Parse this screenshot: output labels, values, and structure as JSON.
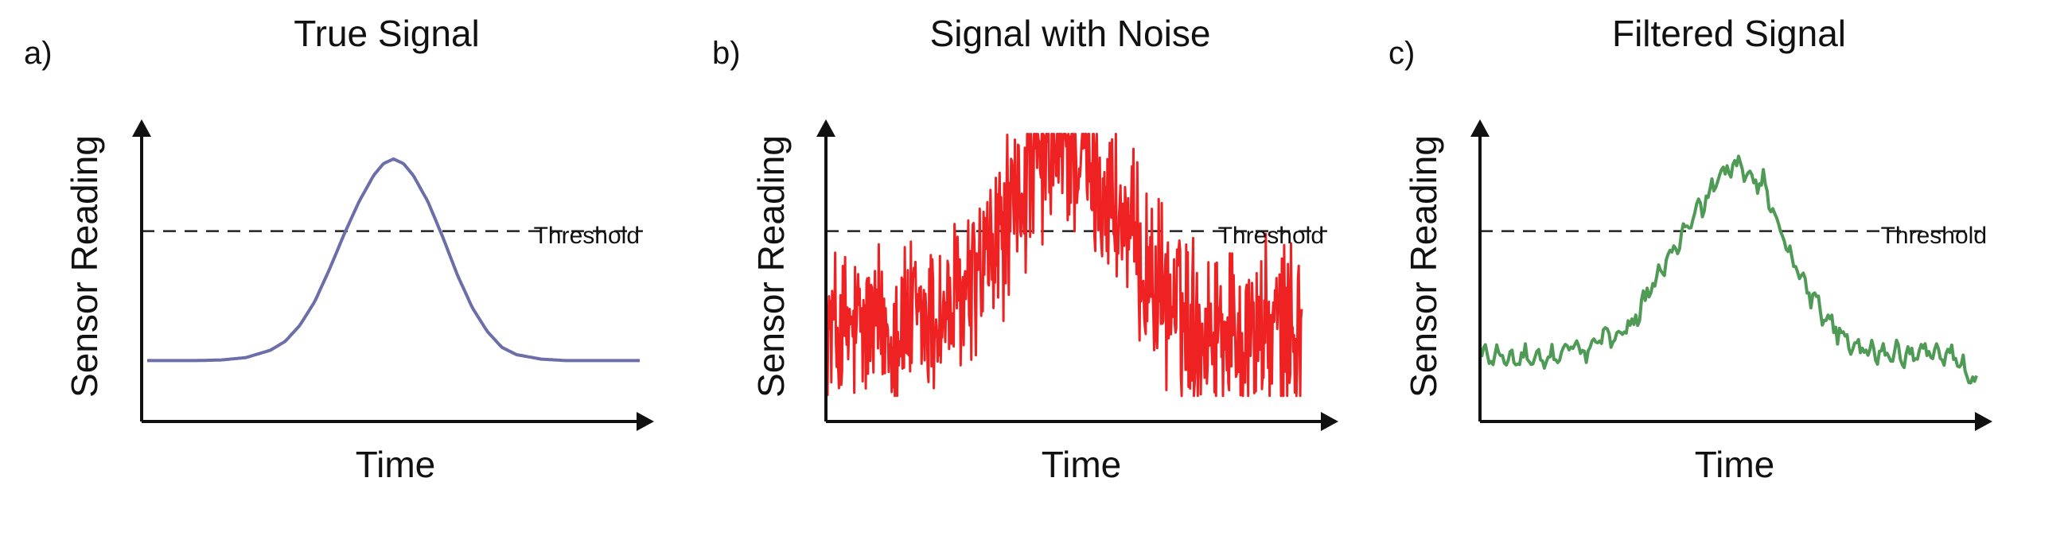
{
  "chart_data": [
    {
      "type": "line",
      "panel_letter": "a)",
      "title": "True Signal",
      "xlabel": "Time",
      "ylabel": "Sensor Reading",
      "threshold_label": "Threshold",
      "threshold": 0.62,
      "ylim": [
        0,
        1
      ],
      "xlim": [
        0,
        1
      ],
      "grid": false,
      "series": [
        {
          "color": "#6b6ea8",
          "x": [
            0.0,
            0.05,
            0.1,
            0.15,
            0.2,
            0.25,
            0.28,
            0.31,
            0.34,
            0.37,
            0.4,
            0.43,
            0.46,
            0.48,
            0.5,
            0.52,
            0.54,
            0.57,
            0.6,
            0.63,
            0.66,
            0.69,
            0.72,
            0.75,
            0.8,
            0.85,
            0.9,
            0.95,
            1.0
          ],
          "y": [
            0.18,
            0.18,
            0.18,
            0.182,
            0.19,
            0.215,
            0.245,
            0.3,
            0.38,
            0.49,
            0.61,
            0.72,
            0.81,
            0.85,
            0.865,
            0.85,
            0.81,
            0.72,
            0.6,
            0.47,
            0.36,
            0.28,
            0.225,
            0.2,
            0.185,
            0.18,
            0.18,
            0.18,
            0.18
          ]
        }
      ]
    },
    {
      "type": "line",
      "panel_letter": "b)",
      "title": "Signal with Noise",
      "xlabel": "Time",
      "ylabel": "Sensor Reading",
      "threshold_label": "Threshold",
      "threshold": 0.62,
      "ylim": [
        0,
        1
      ],
      "xlim": [
        0,
        1
      ],
      "grid": false,
      "series": [
        {
          "color": "#ee2222",
          "x": [
            0.0,
            0.05,
            0.1,
            0.15,
            0.2,
            0.25,
            0.28,
            0.31,
            0.34,
            0.37,
            0.4,
            0.43,
            0.46,
            0.48,
            0.5,
            0.52,
            0.54,
            0.57,
            0.6,
            0.63,
            0.66,
            0.69,
            0.72,
            0.75,
            0.8,
            0.85,
            0.9,
            0.95,
            1.0
          ],
          "y": [
            0.28,
            0.27,
            0.29,
            0.3,
            0.31,
            0.34,
            0.38,
            0.44,
            0.52,
            0.62,
            0.72,
            0.8,
            0.86,
            0.89,
            0.9,
            0.89,
            0.86,
            0.8,
            0.71,
            0.62,
            0.52,
            0.44,
            0.38,
            0.33,
            0.3,
            0.29,
            0.28,
            0.28,
            0.28
          ]
        }
      ]
    },
    {
      "type": "line",
      "panel_letter": "c)",
      "title": "Filtered Signal",
      "xlabel": "Time",
      "ylabel": "Sensor Reading",
      "threshold_label": "Threshold",
      "threshold": 0.62,
      "ylim": [
        0,
        1
      ],
      "xlim": [
        0,
        1
      ],
      "grid": false,
      "series": [
        {
          "color": "#4f9a55",
          "x": [
            0.0,
            0.03,
            0.06,
            0.09,
            0.12,
            0.15,
            0.18,
            0.21,
            0.24,
            0.27,
            0.3,
            0.33,
            0.36,
            0.39,
            0.42,
            0.45,
            0.48,
            0.51,
            0.54,
            0.57,
            0.6,
            0.63,
            0.66,
            0.69,
            0.72,
            0.75,
            0.78,
            0.81,
            0.84,
            0.87,
            0.9,
            0.93,
            0.96,
            1.0
          ],
          "y": [
            0.19,
            0.2,
            0.18,
            0.19,
            0.17,
            0.2,
            0.23,
            0.21,
            0.25,
            0.27,
            0.3,
            0.38,
            0.48,
            0.56,
            0.64,
            0.72,
            0.8,
            0.84,
            0.82,
            0.78,
            0.64,
            0.52,
            0.42,
            0.34,
            0.28,
            0.24,
            0.21,
            0.2,
            0.21,
            0.19,
            0.22,
            0.2,
            0.19,
            0.1
          ]
        }
      ]
    }
  ],
  "style": {
    "axis_color": "#111111",
    "threshold_color": "#222222"
  }
}
